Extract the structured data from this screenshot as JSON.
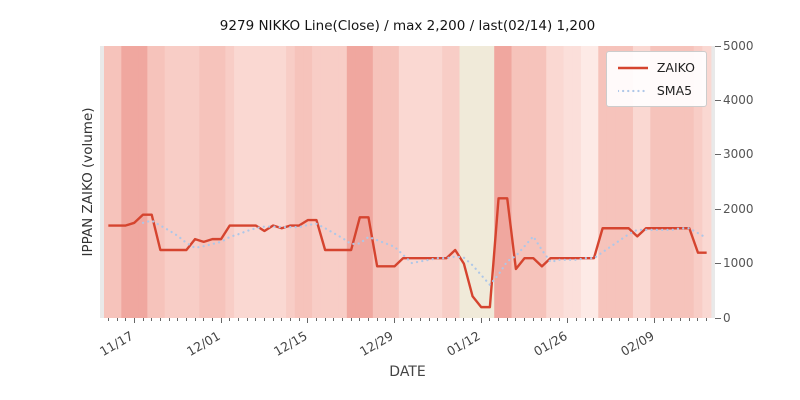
{
  "title": "9279 NIKKO Line(Close) / max 2,200 / last(02/14) 1,200",
  "axes": {
    "xlabel": "DATE",
    "ylabel": "IPPAN ZAIKO (volume)"
  },
  "legend": {
    "items": [
      {
        "label": "ZAIKO"
      },
      {
        "label": "SMA5"
      }
    ]
  },
  "chart_data": {
    "type": "line",
    "title": "9279 NIKKO Line(Close) / max 2,200 / last(02/14) 1,200",
    "xlabel": "DATE",
    "ylabel": "IPPAN ZAIKO (volume)",
    "ylim": [
      0,
      5000
    ],
    "yticks": [
      0,
      1000,
      2000,
      3000,
      4000,
      5000
    ],
    "xtick_labels": [
      "11/17",
      "12/01",
      "12/15",
      "12/29",
      "01/12",
      "01/26",
      "02/09"
    ],
    "xtick_indices": [
      3,
      13,
      23,
      33,
      43,
      53,
      63
    ],
    "legend_position": "upper right",
    "grid": false,
    "stats": {
      "max": "2,200",
      "last_date": "02/14",
      "last_value": "1,200"
    },
    "series": [
      {
        "name": "ZAIKO",
        "style": "solid",
        "color": "#d5442f",
        "width": 2.4,
        "values": [
          1700,
          1700,
          1700,
          1750,
          1900,
          1900,
          1250,
          1250,
          1250,
          1250,
          1450,
          1400,
          1450,
          1450,
          1700,
          1700,
          1700,
          1700,
          1600,
          1700,
          1650,
          1700,
          1700,
          1800,
          1800,
          1250,
          1250,
          1250,
          1250,
          1850,
          1850,
          950,
          950,
          950,
          1100,
          1100,
          1100,
          1100,
          1100,
          1100,
          1250,
          1000,
          400,
          200,
          200,
          2200,
          2200,
          900,
          1100,
          1100,
          950,
          1100,
          1100,
          1100,
          1100,
          1100,
          1100,
          1650,
          1650,
          1650,
          1650,
          1500,
          1650,
          1650,
          1650,
          1650,
          1650,
          1650,
          1200,
          1200
        ]
      },
      {
        "name": "SMA5",
        "style": "dotted",
        "color": "#aec7e8",
        "width": 2.2,
        "derived_from": "ZAIKO",
        "window": 5
      }
    ],
    "plot_edge_color": "#e9e9e9",
    "background_bands": [
      "#f6c3bb",
      "#f6c3bb",
      "#f0a79f",
      "#f0a79f",
      "#f0a79f",
      "#f6c3bb",
      "#f6c3bb",
      "#f8cdc6",
      "#f8cdc6",
      "#f8cdc6",
      "#f8cdc6",
      "#f6c3bb",
      "#f6c3bb",
      "#f6c3bb",
      "#f8cdc6",
      "#fad8d2",
      "#fad8d2",
      "#fad8d2",
      "#fad8d2",
      "#fad8d2",
      "#fad8d2",
      "#f8cdc6",
      "#f6c3bb",
      "#f6c3bb",
      "#f8cdc6",
      "#f8cdc6",
      "#f8cdc6",
      "#f8cdc6",
      "#f0a79f",
      "#f0a79f",
      "#f0a79f",
      "#f6c3bb",
      "#f6c3bb",
      "#f6c3bb",
      "#fad8d2",
      "#fad8d2",
      "#fad8d2",
      "#fad8d2",
      "#fad8d2",
      "#f8cdc6",
      "#f8cdc6",
      "#f0ead9",
      "#f0ead9",
      "#f0ead9",
      "#f0ead9",
      "#f0a79f",
      "#f0a79f",
      "#f6c3bb",
      "#f6c3bb",
      "#f6c3bb",
      "#f6c3bb",
      "#fad8d2",
      "#fad8d2",
      "#fbdfda",
      "#fbdfda",
      "#fdeae6",
      "#fdeae6",
      "#f6c3bb",
      "#f6c3bb",
      "#f6c3bb",
      "#f6c3bb",
      "#fad8d2",
      "#fad8d2",
      "#f6c3bb",
      "#f6c3bb",
      "#f6c3bb",
      "#f6c3bb",
      "#f6c3bb",
      "#f8cdc6",
      "#fad8d2"
    ],
    "tick_color": "#666666"
  }
}
